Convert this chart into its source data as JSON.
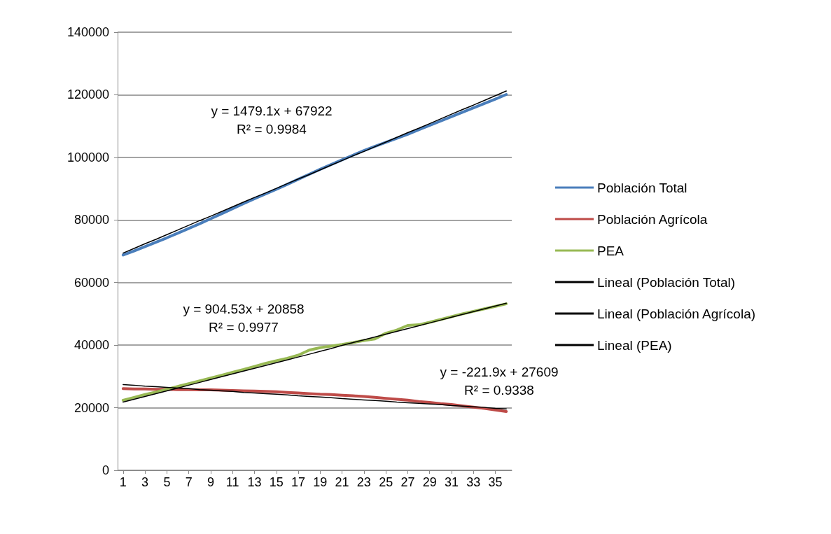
{
  "chart_data": {
    "type": "line",
    "x": [
      1,
      2,
      3,
      4,
      5,
      6,
      7,
      8,
      9,
      10,
      11,
      12,
      13,
      14,
      15,
      16,
      17,
      18,
      19,
      20,
      21,
      22,
      23,
      24,
      25,
      26,
      27,
      28,
      29,
      30,
      31,
      32,
      33,
      34,
      35,
      36
    ],
    "xlim": [
      0.5,
      36.5
    ],
    "xticks": [
      1,
      3,
      5,
      7,
      9,
      11,
      13,
      15,
      17,
      19,
      21,
      23,
      25,
      27,
      29,
      31,
      33,
      35
    ],
    "ylim": [
      0,
      140000
    ],
    "yticks": [
      0,
      20000,
      40000,
      60000,
      80000,
      100000,
      120000,
      140000
    ],
    "grid": "y",
    "legend": "right",
    "marker": "none",
    "series": [
      {
        "name": "Población Total",
        "color": "#4a7ebb",
        "values": [
          68800,
          70100,
          71500,
          72900,
          74300,
          75800,
          77300,
          78800,
          80400,
          82000,
          83600,
          85200,
          86800,
          88300,
          89800,
          91400,
          93000,
          94600,
          96200,
          97700,
          99200,
          100700,
          102200,
          103500,
          104800,
          106100,
          107400,
          108800,
          110200,
          111600,
          113000,
          114400,
          115800,
          117200,
          118600,
          120100
        ]
      },
      {
        "name": "Población Agrícola",
        "color": "#be4b48",
        "values": [
          26100,
          26000,
          26000,
          25900,
          25900,
          25800,
          25800,
          25700,
          25700,
          25600,
          25500,
          25400,
          25300,
          25200,
          25100,
          24900,
          24700,
          24500,
          24300,
          24200,
          24000,
          23800,
          23600,
          23300,
          23000,
          22700,
          22400,
          22000,
          21700,
          21300,
          21000,
          20600,
          20200,
          19800,
          19300,
          18800
        ]
      },
      {
        "name": "PEA",
        "color": "#98b954",
        "values": [
          22400,
          23300,
          24200,
          25000,
          25900,
          26800,
          27700,
          28600,
          29500,
          30400,
          31300,
          32200,
          33200,
          34200,
          35000,
          35800,
          36800,
          38400,
          39200,
          39700,
          40200,
          40800,
          41500,
          42000,
          43800,
          44800,
          46300,
          46500,
          47300,
          48200,
          49100,
          50000,
          50800,
          51600,
          52400,
          53200
        ]
      },
      {
        "name": "Lineal (Población Total)",
        "color": "#000000",
        "values": [
          69400,
          70900,
          72400,
          73800,
          75300,
          76800,
          78300,
          79800,
          81200,
          82700,
          84200,
          85700,
          87200,
          88600,
          90100,
          91600,
          93100,
          94500,
          96000,
          97500,
          99000,
          100500,
          101900,
          103400,
          104900,
          106400,
          107900,
          109300,
          110800,
          112300,
          113800,
          115300,
          116700,
          118200,
          119700,
          121200
        ]
      },
      {
        "name": "Lineal (Población Agrícola)",
        "color": "#000000",
        "values": [
          27400,
          27200,
          26900,
          26700,
          26500,
          26300,
          26100,
          25800,
          25600,
          25400,
          25200,
          24900,
          24700,
          24500,
          24300,
          24100,
          23800,
          23600,
          23400,
          23200,
          22900,
          22700,
          22500,
          22300,
          22100,
          21800,
          21600,
          21400,
          21200,
          21000,
          20700,
          20500,
          20300,
          20100,
          19800,
          19600
        ]
      },
      {
        "name": "Lineal (PEA)",
        "color": "#000000",
        "values": [
          21800,
          22700,
          23600,
          24500,
          25400,
          26300,
          27200,
          28100,
          29000,
          29900,
          30800,
          31700,
          32600,
          33500,
          34400,
          35300,
          36200,
          37100,
          38000,
          38900,
          39900,
          40800,
          41700,
          42600,
          43500,
          44400,
          45300,
          46200,
          47100,
          48000,
          48900,
          49800,
          50700,
          51600,
          52500,
          53400
        ]
      }
    ],
    "annotations": [
      "y = 1479.1x + 67922\nR² = 0.9984",
      "y = 904.53x + 20858\nR² = 0.9977",
      "y = -221.9x + 27609\nR² = 0.9338"
    ]
  }
}
